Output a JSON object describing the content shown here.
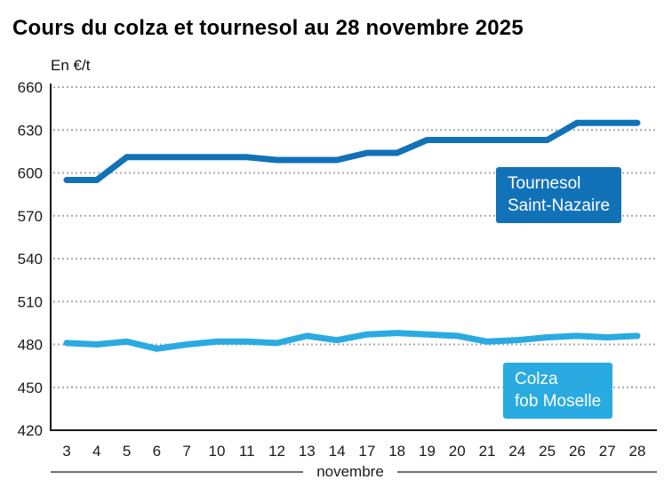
{
  "title": "Cours du colza et tournesol au 28 novembre 2025",
  "y_axis_unit": "En €/t",
  "x_axis_group_label": "novembre",
  "colors": {
    "tournesol": "#1272b8",
    "colza": "#29abe2",
    "grid": "#ababab",
    "axis": "#1a1a1a",
    "tick_text": "#1a1a1a",
    "label_text": "#ffffff"
  },
  "series_labels": {
    "tournesol": [
      "Tournesol",
      "Saint-Nazaire"
    ],
    "colza": [
      "Colza",
      "fob Moselle"
    ]
  },
  "chart_data": {
    "type": "line",
    "title": "Cours du colza et tournesol au 28 novembre 2025",
    "xlabel": "novembre",
    "ylabel": "En €/t",
    "x": [
      3,
      4,
      5,
      6,
      7,
      10,
      11,
      12,
      13,
      14,
      17,
      18,
      19,
      20,
      21,
      24,
      25,
      26,
      27,
      28
    ],
    "yticks": [
      420,
      450,
      480,
      510,
      540,
      570,
      600,
      630,
      660
    ],
    "ylim": [
      420,
      660
    ],
    "grid": "horizontal-dotted",
    "legend_position": "inline-boxes-right",
    "series": [
      {
        "name": "Tournesol Saint-Nazaire",
        "color": "#1272b8",
        "values": [
          595,
          595,
          611,
          611,
          611,
          611,
          611,
          609,
          609,
          609,
          614,
          614,
          623,
          623,
          623,
          623,
          623,
          635,
          635,
          635
        ]
      },
      {
        "name": "Colza fob Moselle",
        "color": "#29abe2",
        "values": [
          481,
          480,
          482,
          477,
          480,
          482,
          482,
          481,
          486,
          483,
          487,
          488,
          487,
          486,
          482,
          483,
          485,
          486,
          485,
          486
        ]
      }
    ]
  }
}
